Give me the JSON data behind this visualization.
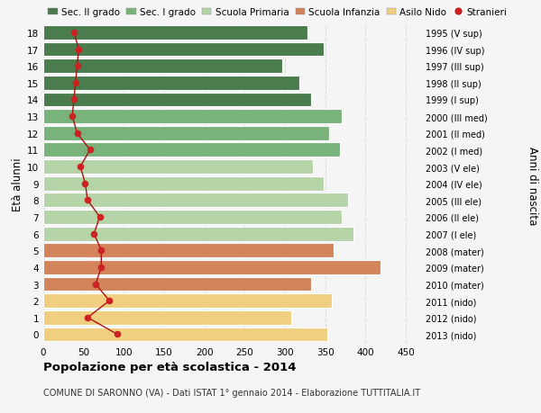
{
  "ages": [
    18,
    17,
    16,
    15,
    14,
    13,
    12,
    11,
    10,
    9,
    8,
    7,
    6,
    5,
    4,
    3,
    2,
    1,
    0
  ],
  "right_labels": [
    "1995 (V sup)",
    "1996 (IV sup)",
    "1997 (III sup)",
    "1998 (II sup)",
    "1999 (I sup)",
    "2000 (III med)",
    "2001 (II med)",
    "2002 (I med)",
    "2003 (V ele)",
    "2004 (IV ele)",
    "2005 (III ele)",
    "2006 (II ele)",
    "2007 (I ele)",
    "2008 (mater)",
    "2009 (mater)",
    "2010 (mater)",
    "2011 (nido)",
    "2012 (nido)",
    "2013 (nido)"
  ],
  "bar_values": [
    328,
    348,
    296,
    318,
    332,
    370,
    355,
    368,
    335,
    348,
    378,
    370,
    385,
    360,
    418,
    332,
    358,
    308,
    352
  ],
  "bar_colors": [
    "#4a7c4e",
    "#4a7c4e",
    "#4a7c4e",
    "#4a7c4e",
    "#4a7c4e",
    "#7ab27c",
    "#7ab27c",
    "#7ab27c",
    "#b5d4a8",
    "#b5d4a8",
    "#b5d4a8",
    "#b5d4a8",
    "#b5d4a8",
    "#d4845a",
    "#d4845a",
    "#d4845a",
    "#f0d080",
    "#f0d080",
    "#f0d080"
  ],
  "stranieri_values": [
    38,
    44,
    42,
    40,
    38,
    36,
    42,
    58,
    46,
    52,
    55,
    70,
    63,
    72,
    72,
    65,
    82,
    55,
    92
  ],
  "title_bold": "Popolazione per età scolastica - 2014",
  "subtitle": "COMUNE DI SARONNO (VA) - Dati ISTAT 1° gennaio 2014 - Elaborazione TUTTITALIA.IT",
  "ylabel_left": "Età alunni",
  "ylabel_right": "Anni di nascita",
  "xlim_max": 470,
  "xticks": [
    0,
    50,
    100,
    150,
    200,
    250,
    300,
    350,
    400,
    450
  ],
  "legend_labels": [
    "Sec. II grado",
    "Sec. I grado",
    "Scuola Primaria",
    "Scuola Infanzia",
    "Asilo Nido",
    "Stranieri"
  ],
  "legend_colors": [
    "#4a7c4e",
    "#7ab27c",
    "#b5d4a8",
    "#d4845a",
    "#f0d080",
    "#cc2222"
  ],
  "background_color": "#f5f5f5",
  "grid_color": "#dddddd",
  "bar_edge_color": "#ffffff",
  "stranieri_line_color": "#aa1111",
  "stranieri_dot_color": "#cc2222"
}
